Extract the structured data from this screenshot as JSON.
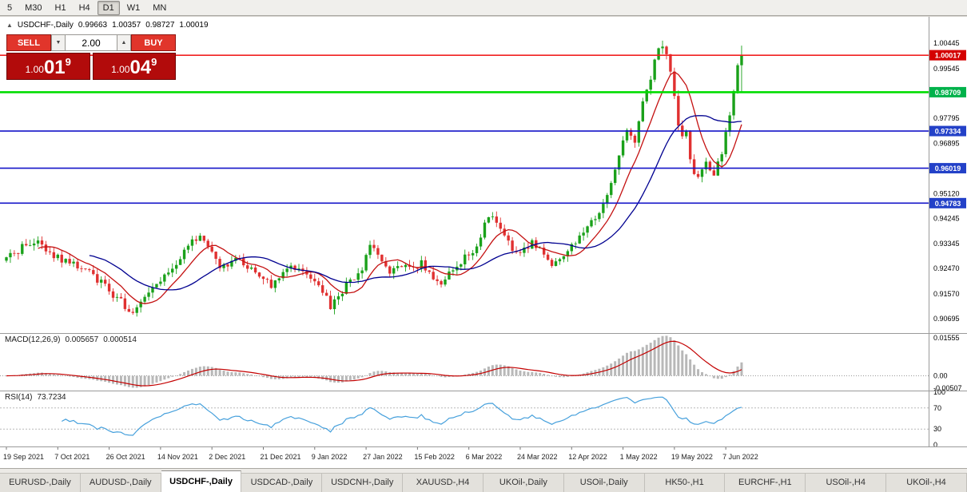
{
  "toolbar": {
    "timeframes": [
      "5",
      "M30",
      "H1",
      "H4",
      "D1",
      "W1",
      "MN"
    ],
    "active": "D1"
  },
  "chart": {
    "title": "USDCHF-,Daily",
    "ohlc": {
      "open": "0.99663",
      "high": "1.00357",
      "low": "0.98727",
      "close": "1.00019"
    },
    "trade_panel": {
      "sell_label": "SELL",
      "buy_label": "BUY",
      "volume": "2.00",
      "sell_price": {
        "big": "1.00",
        "pips": "01",
        "frac": "9"
      },
      "buy_price": {
        "big": "1.00",
        "pips": "04",
        "frac": "9"
      }
    },
    "y_ticks": [
      "1.00445",
      "0.99545",
      "0.98650",
      "0.97795",
      "0.96895",
      "0.95120",
      "0.94245",
      "0.93345",
      "0.92470",
      "0.91570",
      "0.90695"
    ],
    "levels": [
      {
        "label": "1.00017",
        "value": 1.00017,
        "color": "#f02020",
        "badge": "#d40000",
        "width": 1.6
      },
      {
        "label": "0.98709",
        "value": 0.98709,
        "color": "#00dd00",
        "badge": "#00b24b",
        "width": 2.6
      },
      {
        "label": "0.97334",
        "value": 0.97334,
        "color": "#1414c8",
        "badge": "#2341c8",
        "width": 1.6
      },
      {
        "label": "0.96019",
        "value": 0.96019,
        "color": "#1414c8",
        "badge": "#2341c8",
        "width": 1.6
      },
      {
        "label": "0.94783",
        "value": 0.94783,
        "color": "#1414c8",
        "badge": "#2341c8",
        "width": 1.6
      }
    ],
    "x_ticks": [
      "19 Sep 2021",
      "7 Oct 2021",
      "26 Oct 2021",
      "14 Nov 2021",
      "2 Dec 2021",
      "21 Dec 2021",
      "9 Jan 2022",
      "27 Jan 2022",
      "15 Feb 2022",
      "6 Mar 2022",
      "24 Mar 2022",
      "12 Apr 2022",
      "1 May 2022",
      "19 May 2022",
      "7 Jun 2022"
    ]
  },
  "macd": {
    "name": "MACD(12,26,9)",
    "value": "0.005657",
    "signal": "0.000514",
    "y_ticks": [
      "0.01555",
      "0.00",
      "-0.00507"
    ]
  },
  "rsi": {
    "name": "RSI(14)",
    "value": "73.7234",
    "y_ticks": [
      "100",
      "70",
      "30",
      "0"
    ]
  },
  "tabs": [
    {
      "label": "EURUSD-,Daily",
      "active": false
    },
    {
      "label": "AUDUSD-,Daily",
      "active": false
    },
    {
      "label": "USDCHF-,Daily",
      "active": true
    },
    {
      "label": "USDCAD-,Daily",
      "active": false
    },
    {
      "label": "USDCNH-,Daily",
      "active": false
    },
    {
      "label": "XAUUSD-,H4",
      "active": false
    },
    {
      "label": "UKOil-,Daily",
      "active": false
    },
    {
      "label": "USOil-,Daily",
      "active": false
    },
    {
      "label": "HK50-,H1",
      "active": false
    },
    {
      "label": "EURCHF-,H1",
      "active": false
    },
    {
      "label": "USOil-,H4",
      "active": false
    },
    {
      "label": "UKOil-,H4",
      "active": false
    }
  ],
  "chart_data": [
    {
      "type": "candlestick",
      "symbol": "USDCHF",
      "timeframe": "Daily",
      "n_bars": 187,
      "bars_per_tick": 13,
      "ylim": [
        0.9018,
        1.0138
      ],
      "last_bar": {
        "open": 0.99663,
        "high": 1.00357,
        "low": 0.98727,
        "close": 1.00019
      },
      "x_tick_labels": [
        "19 Sep 2021",
        "7 Oct 2021",
        "26 Oct 2021",
        "14 Nov 2021",
        "2 Dec 2021",
        "21 Dec 2021",
        "9 Jan 2022",
        "27 Jan 2022",
        "15 Feb 2022",
        "6 Mar 2022",
        "24 Mar 2022",
        "12 Apr 2022",
        "1 May 2022",
        "19 May 2022",
        "7 Jun 2022"
      ],
      "close_anchors": [
        [
          0,
          0.928
        ],
        [
          3,
          0.931
        ],
        [
          6,
          0.934
        ],
        [
          9,
          0.933
        ],
        [
          12,
          0.9295
        ],
        [
          15,
          0.927
        ],
        [
          18,
          0.9255
        ],
        [
          21,
          0.923
        ],
        [
          24,
          0.92
        ],
        [
          27,
          0.9155
        ],
        [
          30,
          0.9115
        ],
        [
          32,
          0.9095
        ],
        [
          34,
          0.914
        ],
        [
          37,
          0.918
        ],
        [
          40,
          0.9215
        ],
        [
          43,
          0.927
        ],
        [
          46,
          0.933
        ],
        [
          49,
          0.9365
        ],
        [
          51,
          0.933
        ],
        [
          53,
          0.927
        ],
        [
          55,
          0.925
        ],
        [
          58,
          0.928
        ],
        [
          61,
          0.9255
        ],
        [
          64,
          0.922
        ],
        [
          67,
          0.9185
        ],
        [
          70,
          0.9225
        ],
        [
          73,
          0.9255
        ],
        [
          76,
          0.9215
        ],
        [
          79,
          0.9185
        ],
        [
          81,
          0.914
        ],
        [
          82,
          0.9105
        ],
        [
          84,
          0.915
        ],
        [
          86,
          0.9185
        ],
        [
          88,
          0.9205
        ],
        [
          90,
          0.9245
        ],
        [
          92,
          0.932
        ],
        [
          94,
          0.93
        ],
        [
          97,
          0.9235
        ],
        [
          100,
          0.9255
        ],
        [
          103,
          0.924
        ],
        [
          105,
          0.9265
        ],
        [
          107,
          0.9225
        ],
        [
          110,
          0.919
        ],
        [
          113,
          0.9245
        ],
        [
          116,
          0.9285
        ],
        [
          119,
          0.932
        ],
        [
          121,
          0.94
        ],
        [
          122,
          0.9435
        ],
        [
          124,
          0.9405
        ],
        [
          127,
          0.9335
        ],
        [
          130,
          0.9295
        ],
        [
          133,
          0.9335
        ],
        [
          136,
          0.9305
        ],
        [
          138,
          0.9245
        ],
        [
          141,
          0.9295
        ],
        [
          143,
          0.9325
        ],
        [
          146,
          0.9385
        ],
        [
          149,
          0.9425
        ],
        [
          152,
          0.9505
        ],
        [
          155,
          0.9655
        ],
        [
          157,
          0.9725
        ],
        [
          159,
          0.9705
        ],
        [
          161,
          0.9825
        ],
        [
          163,
          0.9925
        ],
        [
          165,
          1.0025
        ],
        [
          166,
          1.0045
        ],
        [
          167,
          0.9995
        ],
        [
          168,
          0.9945
        ],
        [
          169,
          0.9855
        ],
        [
          170,
          0.9765
        ],
        [
          171,
          0.9705
        ],
        [
          172,
          0.9735
        ],
        [
          173,
          0.9645
        ],
        [
          174,
          0.9585
        ],
        [
          175,
          0.956
        ],
        [
          176,
          0.9605
        ],
        [
          177,
          0.9635
        ],
        [
          178,
          0.959
        ],
        [
          179,
          0.9565
        ],
        [
          180,
          0.9615
        ],
        [
          181,
          0.9665
        ],
        [
          182,
          0.9725
        ],
        [
          183,
          0.9795
        ],
        [
          184,
          0.9875
        ],
        [
          185,
          0.99663
        ],
        [
          186,
          1.00019
        ]
      ],
      "moving_averages": [
        {
          "type": "sma",
          "period": 9,
          "color": "#c41111"
        },
        {
          "type": "sma",
          "period": 22,
          "color": "#000090"
        }
      ],
      "hlines": [
        1.00017,
        0.98709,
        0.97334,
        0.96019,
        0.94783
      ]
    },
    {
      "type": "bar",
      "name": "MACD(12,26,9)",
      "current": 0.005657,
      "signal_current": 0.000514,
      "ylim": [
        -0.00606,
        0.01751
      ],
      "y_tick_values": [
        0.01555,
        0.0,
        -0.00507
      ],
      "histogram_color": "#b8b8b8",
      "signal_color": "#c40000"
    },
    {
      "type": "line",
      "name": "RSI(14)",
      "current": 73.7234,
      "ylim": [
        0,
        100
      ],
      "levels": [
        70,
        30
      ],
      "y_tick_values": [
        100,
        70,
        30,
        0
      ],
      "line_color": "#46a0dc"
    }
  ]
}
